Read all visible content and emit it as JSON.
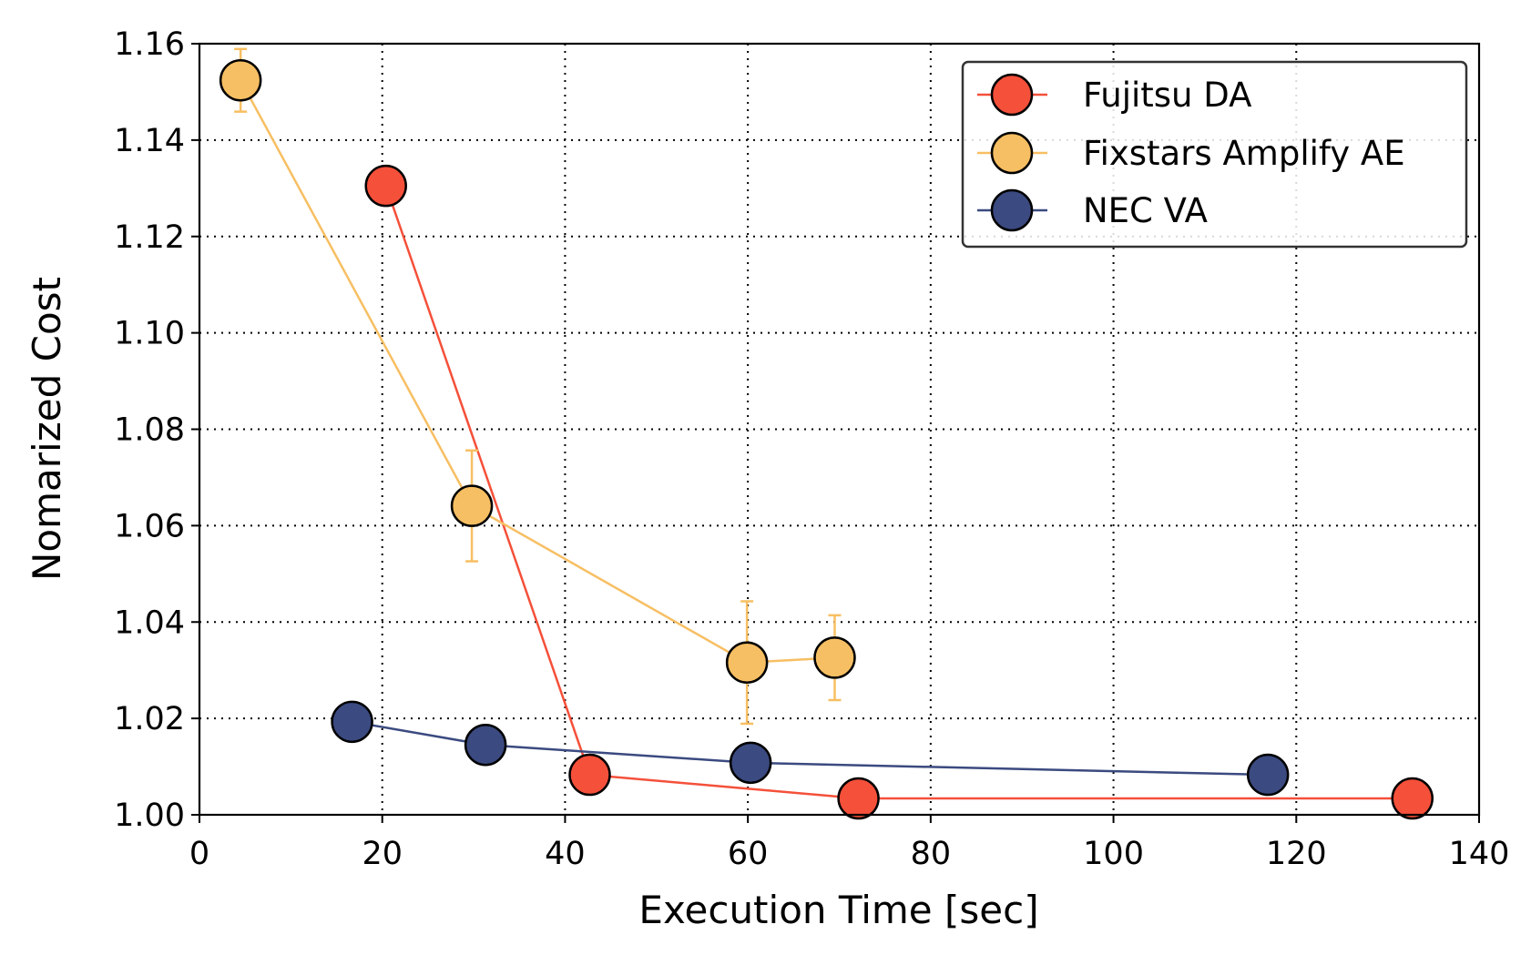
{
  "chart_data": {
    "type": "line",
    "title": "",
    "xlabel": "Execution Time [sec]",
    "ylabel": "Nomarized Cost",
    "xlim": [
      0,
      140
    ],
    "ylim": [
      1.0,
      1.16
    ],
    "xticks": [
      0,
      20,
      40,
      60,
      80,
      100,
      120,
      140
    ],
    "xtick_labels": [
      "0",
      "20",
      "40",
      "60",
      "80",
      "100",
      "120",
      "140"
    ],
    "yticks": [
      1.0,
      1.02,
      1.04,
      1.06,
      1.08,
      1.1,
      1.12,
      1.14,
      1.16
    ],
    "ytick_labels": [
      "1.00",
      "1.02",
      "1.04",
      "1.06",
      "1.08",
      "1.10",
      "1.12",
      "1.14",
      "1.16"
    ],
    "grid": true,
    "legend_position": "top-right",
    "series": [
      {
        "name": "Fujitsu DA",
        "color": "#f5503a",
        "x": [
          20.4,
          42.7,
          72.1,
          132.7
        ],
        "y": [
          1.1305,
          1.0083,
          1.0034,
          1.0034
        ],
        "err": [
          0,
          0,
          0,
          0
        ]
      },
      {
        "name": "Fixstars Amplify AE",
        "color": "#f7bf63",
        "x": [
          4.5,
          29.8,
          59.9,
          69.5
        ],
        "y": [
          1.1524,
          1.0641,
          1.0316,
          1.0326
        ],
        "err": [
          0.0065,
          0.0115,
          0.0127,
          0.0088
        ]
      },
      {
        "name": "NEC VA",
        "color": "#3b4a80",
        "x": [
          16.7,
          31.3,
          60.3,
          116.9
        ],
        "y": [
          1.0193,
          1.0145,
          1.0108,
          1.0083
        ],
        "err": [
          0.002,
          0,
          0,
          0
        ]
      }
    ]
  }
}
